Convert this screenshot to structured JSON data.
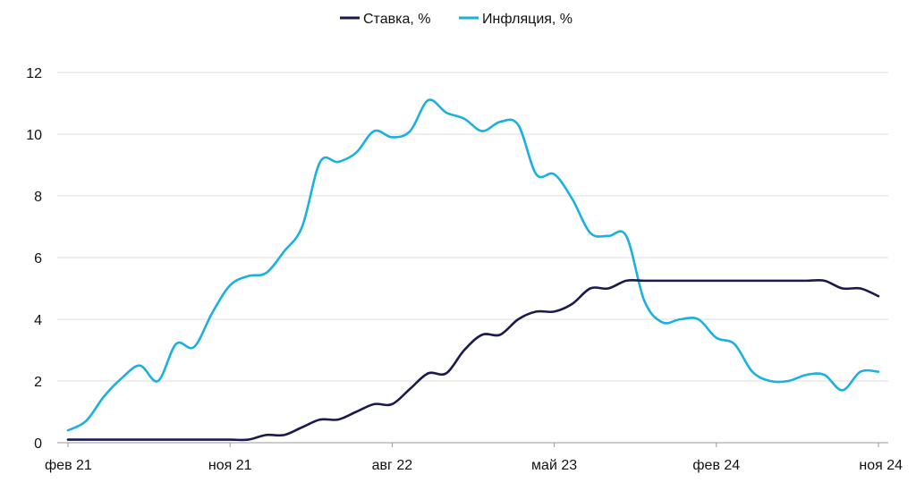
{
  "chart_data": {
    "type": "line",
    "title": "",
    "xlabel": "",
    "ylabel": "",
    "ylim": [
      0,
      12
    ],
    "y_ticks": [
      0,
      2,
      4,
      6,
      8,
      10,
      12
    ],
    "y_tick_labels": [
      "0",
      "2",
      "4",
      "6",
      "8",
      "10",
      "12"
    ],
    "x_range": [
      0,
      45
    ],
    "x_ticks": [
      0,
      9,
      18,
      27,
      36,
      45
    ],
    "x_tick_labels": [
      "фев 21",
      "ноя 21",
      "авг 22",
      "май 23",
      "фев 24",
      "ноя 24"
    ],
    "grid": true,
    "legend_position": "top-center",
    "series": [
      {
        "name": "Ставка, %",
        "color": "#1b1a4e",
        "x": [
          0,
          1,
          2,
          3,
          4,
          5,
          6,
          7,
          8,
          9,
          10,
          11,
          12,
          13,
          14,
          15,
          16,
          17,
          18,
          19,
          20,
          21,
          22,
          23,
          24,
          25,
          26,
          27,
          28,
          29,
          30,
          31,
          32,
          33,
          34,
          35,
          36,
          37,
          38,
          39,
          40,
          41,
          42,
          43,
          44,
          45
        ],
        "values": [
          0.1,
          0.1,
          0.1,
          0.1,
          0.1,
          0.1,
          0.1,
          0.1,
          0.1,
          0.1,
          0.1,
          0.25,
          0.25,
          0.5,
          0.75,
          0.75,
          1.0,
          1.25,
          1.25,
          1.75,
          2.25,
          2.25,
          3.0,
          3.5,
          3.5,
          4.0,
          4.25,
          4.25,
          4.5,
          5.0,
          5.0,
          5.25,
          5.25,
          5.25,
          5.25,
          5.25,
          5.25,
          5.25,
          5.25,
          5.25,
          5.25,
          5.25,
          5.25,
          5.0,
          5.0,
          4.75
        ]
      },
      {
        "name": "Инфляция, %",
        "color": "#1ab0df",
        "x": [
          0,
          1,
          2,
          3,
          4,
          5,
          6,
          7,
          8,
          9,
          10,
          11,
          12,
          13,
          14,
          15,
          16,
          17,
          18,
          19,
          20,
          21,
          22,
          23,
          24,
          25,
          26,
          27,
          28,
          29,
          30,
          31,
          32,
          33,
          34,
          35,
          36,
          37,
          38,
          39,
          40,
          41,
          42,
          43,
          44,
          45
        ],
        "values": [
          0.4,
          0.7,
          1.5,
          2.1,
          2.5,
          2.0,
          3.2,
          3.1,
          4.2,
          5.1,
          5.4,
          5.5,
          6.2,
          7.0,
          9.1,
          9.1,
          9.4,
          10.1,
          9.9,
          10.1,
          11.1,
          10.7,
          10.5,
          10.1,
          10.4,
          10.3,
          8.7,
          8.7,
          7.9,
          6.8,
          6.7,
          6.7,
          4.6,
          3.9,
          4.0,
          4.0,
          3.4,
          3.2,
          2.3,
          2.0,
          2.0,
          2.2,
          2.2,
          1.7,
          2.3,
          2.3
        ]
      }
    ]
  }
}
